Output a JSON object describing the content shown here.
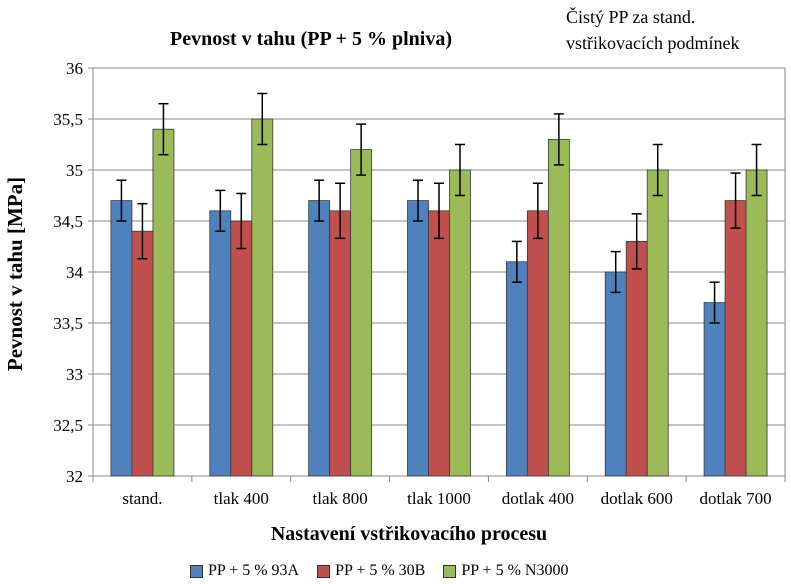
{
  "chart_data": {
    "type": "bar",
    "title": "Pevnost v tahu (PP + 5 % plniva)",
    "annotation": "Čistý PP za stand.\nvstřikovacích podmínek",
    "xlabel": "Nastavení vstřikovacího procesu",
    "ylabel": "Pevnost v tahu [MPa]",
    "ylim": [
      32,
      36
    ],
    "yticks": [
      "32",
      "32,5",
      "33",
      "33,5",
      "34",
      "34,5",
      "35",
      "35,5",
      "36"
    ],
    "grid": true,
    "legend_position": "bottom",
    "categories": [
      "stand.",
      "tlak 400",
      "tlak 800",
      "tlak 1000",
      "dotlak 400",
      "dotlak 600",
      "dotlak 700"
    ],
    "series": [
      {
        "name": "PP + 5 % 93A",
        "color": "#4f81bd",
        "values": [
          34.7,
          34.6,
          34.7,
          34.7,
          34.1,
          34.0,
          33.7
        ],
        "errors": [
          0.2,
          0.2,
          0.2,
          0.2,
          0.2,
          0.2,
          0.2
        ]
      },
      {
        "name": "PP + 5 % 30B",
        "color": "#c0504d",
        "values": [
          34.4,
          34.5,
          34.6,
          34.6,
          34.6,
          34.3,
          34.7
        ],
        "errors": [
          0.27,
          0.27,
          0.27,
          0.27,
          0.27,
          0.27,
          0.27
        ]
      },
      {
        "name": "PP + 5 % N3000",
        "color": "#9bbb59",
        "values": [
          35.4,
          35.5,
          35.2,
          35.0,
          35.3,
          35.0,
          35.0
        ],
        "errors": [
          0.25,
          0.25,
          0.25,
          0.25,
          0.25,
          0.25,
          0.25
        ]
      }
    ]
  }
}
